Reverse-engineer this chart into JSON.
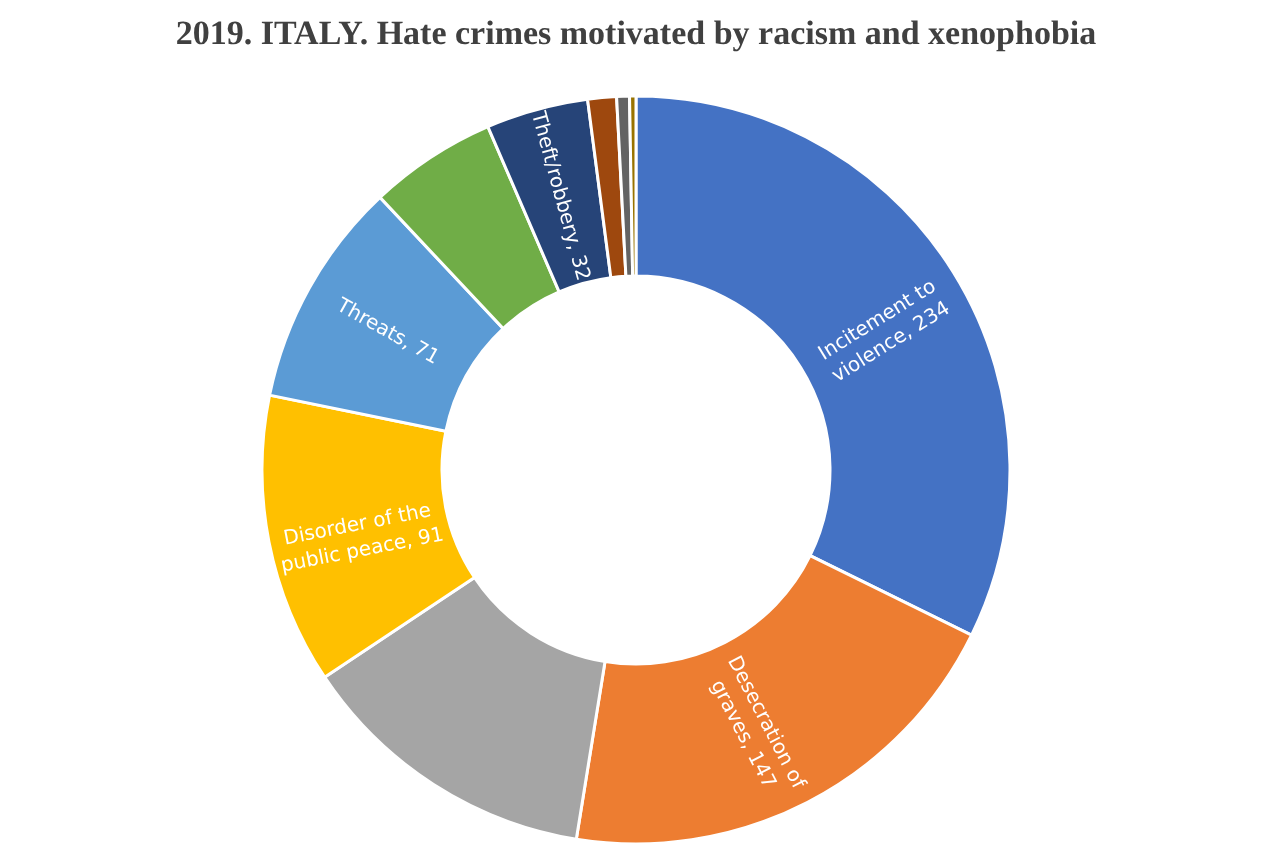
{
  "chart_data": {
    "type": "donut",
    "title": "2019. ITALY. Hate crimes motivated by racism and xenophobia",
    "categories": [
      "Incitement to violence",
      "Desecration of graves",
      null,
      "Disorder of the public peace",
      "Threats",
      null,
      "Theft/robbery",
      null,
      null,
      null
    ],
    "values": [
      234,
      147,
      95,
      91,
      71,
      40,
      32,
      9,
      4,
      2
    ],
    "value_labels": [
      "234",
      "147",
      null,
      "91",
      "71",
      null,
      "32",
      null,
      null,
      null
    ],
    "colors": [
      "#4472c4",
      "#ed7d31",
      "#a5a5a5",
      "#ffc000",
      "#5b9bd5",
      "#70ad47",
      "#264478",
      "#9e480e",
      "#636363",
      "#997300"
    ],
    "legend": false
  }
}
